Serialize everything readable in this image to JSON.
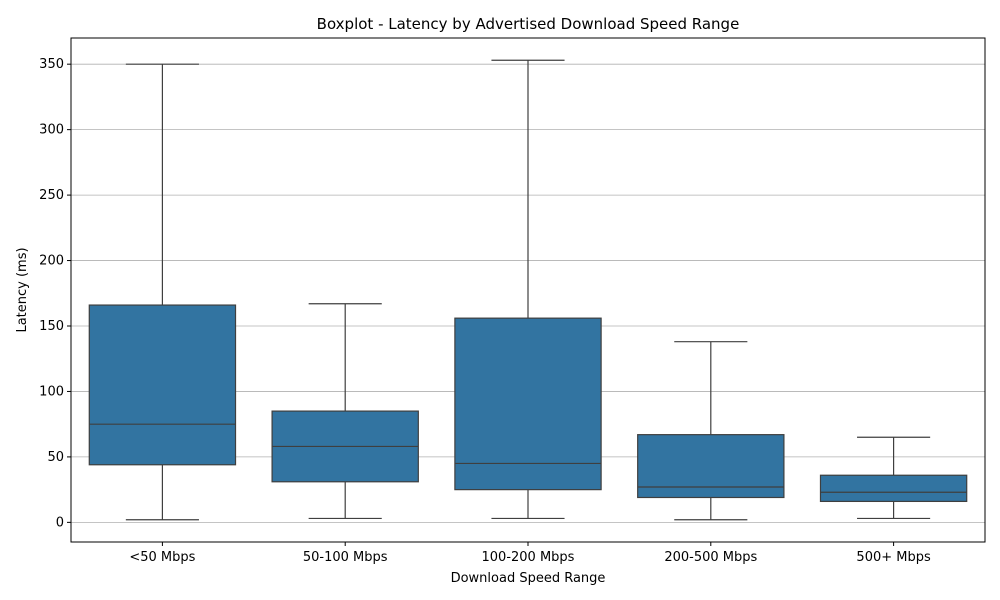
{
  "chart_data": {
    "type": "boxplot",
    "title": "Boxplot - Latency by Advertised Download Speed Range",
    "xlabel": "Download Speed Range",
    "ylabel": "Latency (ms)",
    "categories": [
      "<50 Mbps",
      "50-100 Mbps",
      "100-200 Mbps",
      "200-500 Mbps",
      "500+ Mbps"
    ],
    "boxes": [
      {
        "whisker_low": 2,
        "q1": 44,
        "median": 75,
        "q3": 166,
        "whisker_high": 350
      },
      {
        "whisker_low": 3,
        "q1": 31,
        "median": 58,
        "q3": 85,
        "whisker_high": 167
      },
      {
        "whisker_low": 3,
        "q1": 25,
        "median": 45,
        "q3": 156,
        "whisker_high": 353
      },
      {
        "whisker_low": 2,
        "q1": 19,
        "median": 27,
        "q3": 67,
        "whisker_high": 138
      },
      {
        "whisker_low": 3,
        "q1": 16,
        "median": 23,
        "q3": 36,
        "whisker_high": 65
      }
    ],
    "ylim": [
      -15,
      370
    ],
    "yticks": [
      0,
      50,
      100,
      150,
      200,
      250,
      300,
      350
    ],
    "grid": "y-axis",
    "colors": {
      "box": "#3274a1",
      "line": "#3f3f3f",
      "grid": "#b0b0b0",
      "axis": "#000000"
    }
  }
}
